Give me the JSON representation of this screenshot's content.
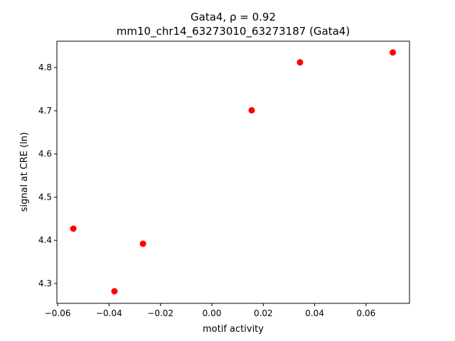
{
  "chart_data": {
    "type": "scatter",
    "title": "Gata4, ρ = 0.92",
    "subtitle": "mm10_chr14_63273010_63273187 (Gata4)",
    "x_label": "motif activity",
    "y_label": "signal at CRE (ln)",
    "color": "#ff0000",
    "x": [
      -0.0539,
      -0.0379,
      -0.0268,
      0.0155,
      0.0343,
      0.0704
    ],
    "values": [
      4.427,
      4.282,
      4.392,
      4.701,
      4.812,
      4.835
    ],
    "xlim": [
      -0.0603,
      0.0769
    ],
    "ylim": [
      4.254,
      4.861
    ],
    "xticks": [
      {
        "value": -0.06,
        "label": "−0.06"
      },
      {
        "value": -0.04,
        "label": "−0.04"
      },
      {
        "value": -0.02,
        "label": "−0.02"
      },
      {
        "value": 0,
        "label": "0.00"
      },
      {
        "value": 0.02,
        "label": "0.02"
      },
      {
        "value": 0.04,
        "label": "0.04"
      },
      {
        "value": 0.06,
        "label": "0.06"
      }
    ],
    "yticks": [
      4.3,
      4.4,
      4.5,
      4.6,
      4.7,
      4.8
    ]
  }
}
